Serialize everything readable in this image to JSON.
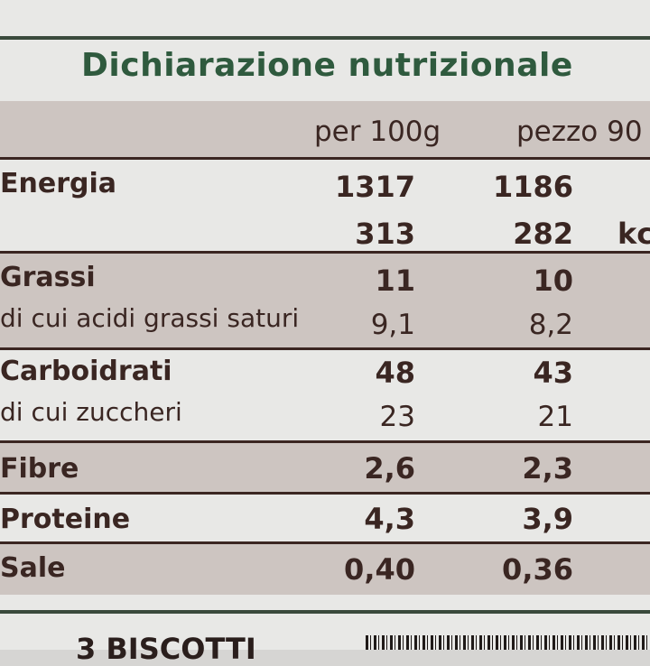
{
  "title": "Dichiarazione nutrizionale",
  "columns": {
    "per_100g": "per 100g",
    "per_piece": "pezzo 90"
  },
  "rows": {
    "energia": {
      "name": "Energia",
      "kj_100": "1317",
      "kj_piece": "1186",
      "kcal_100": "313",
      "kcal_piece": "282",
      "kcal_unit": "kc"
    },
    "grassi": {
      "name": "Grassi",
      "v100": "11",
      "vpiece": "10"
    },
    "saturi": {
      "name": "di cui acidi grassi saturi",
      "v100": "9,1",
      "vpiece": "8,2"
    },
    "carboidrati": {
      "name": "Carboidrati",
      "v100": "48",
      "vpiece": "43"
    },
    "zuccheri": {
      "name": "di cui zuccheri",
      "v100": "23",
      "vpiece": "21"
    },
    "fibre": {
      "name": "Fibre",
      "v100": "2,6",
      "vpiece": "2,3"
    },
    "proteine": {
      "name": "Proteine",
      "v100": "4,3",
      "vpiece": "3,9"
    },
    "sale": {
      "name": "Sale",
      "v100": "0,40",
      "vpiece": "0,36"
    }
  },
  "footer": "3 BISCOTTI"
}
